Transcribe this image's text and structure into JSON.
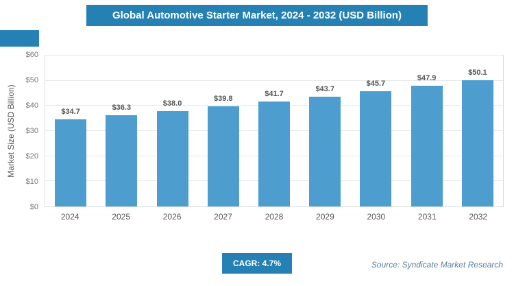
{
  "title": "Global Automotive Starter Market, 2024 - 2032 (USD Billion)",
  "colors": {
    "header_bg": "#2580B3",
    "bar": "#4D9ECF",
    "badge_bg": "#2580B3",
    "value_label": "#555555",
    "source_text": "#5B7D9E"
  },
  "chart_data": {
    "type": "bar",
    "categories": [
      "2024",
      "2025",
      "2026",
      "2027",
      "2028",
      "2029",
      "2030",
      "2031",
      "2032"
    ],
    "values": [
      34.7,
      36.3,
      38.0,
      39.8,
      41.7,
      43.7,
      45.7,
      47.9,
      50.1
    ],
    "value_labels": [
      "$34.7",
      "$36.3",
      "$38.0",
      "$39.8",
      "$41.7",
      "$43.7",
      "$45.7",
      "$47.9",
      "$50.1"
    ],
    "title": "Global Automotive Starter Market, 2024 - 2032 (USD Billion)",
    "xlabel": "",
    "ylabel": "Market Size (USD Billion)",
    "ylim": [
      0,
      60
    ],
    "ytick_labels": [
      "$0",
      "$10",
      "$20",
      "$30",
      "$40",
      "$50",
      "$60"
    ],
    "grid": true,
    "legend": false
  },
  "footer": {
    "cagr_label": "CAGR: 4.7%",
    "source": "Source: Syndicate Market Research"
  }
}
